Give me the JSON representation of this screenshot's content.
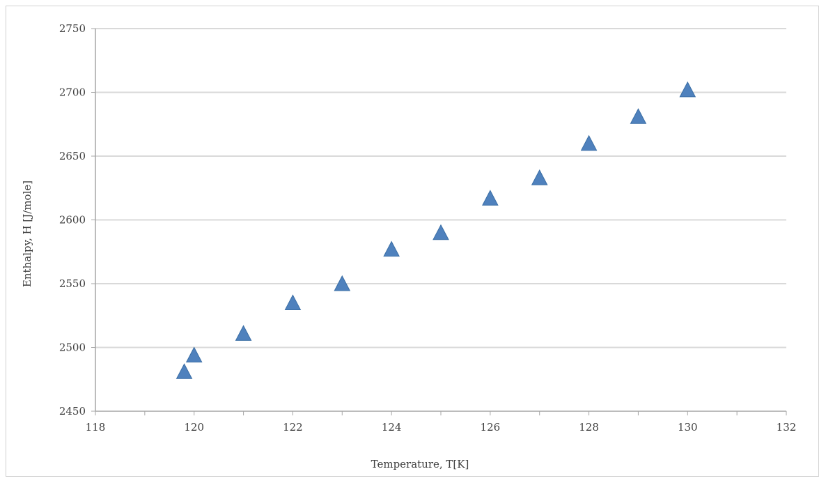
{
  "chart_data": {
    "type": "scatter",
    "title": "",
    "xlabel": "Temperature, T[K]",
    "ylabel": "Enthalpy, H [J/mole]",
    "xlim": [
      118,
      132
    ],
    "ylim": [
      2450,
      2750
    ],
    "x_ticks": [
      118,
      120,
      122,
      124,
      126,
      128,
      130,
      132
    ],
    "y_ticks": [
      2450,
      2500,
      2550,
      2600,
      2650,
      2700,
      2750
    ],
    "grid": "horizontal",
    "marker": "triangle",
    "color": "#4f81bd",
    "series": [
      {
        "points": [
          {
            "x": 119.8,
            "y": 2481
          },
          {
            "x": 120,
            "y": 2494
          },
          {
            "x": 121,
            "y": 2511
          },
          {
            "x": 122,
            "y": 2535
          },
          {
            "x": 123,
            "y": 2550
          },
          {
            "x": 124,
            "y": 2577
          },
          {
            "x": 125,
            "y": 2590
          },
          {
            "x": 126,
            "y": 2617
          },
          {
            "x": 127,
            "y": 2633
          },
          {
            "x": 128,
            "y": 2660
          },
          {
            "x": 129,
            "y": 2681
          },
          {
            "x": 130,
            "y": 2702
          }
        ]
      }
    ]
  }
}
